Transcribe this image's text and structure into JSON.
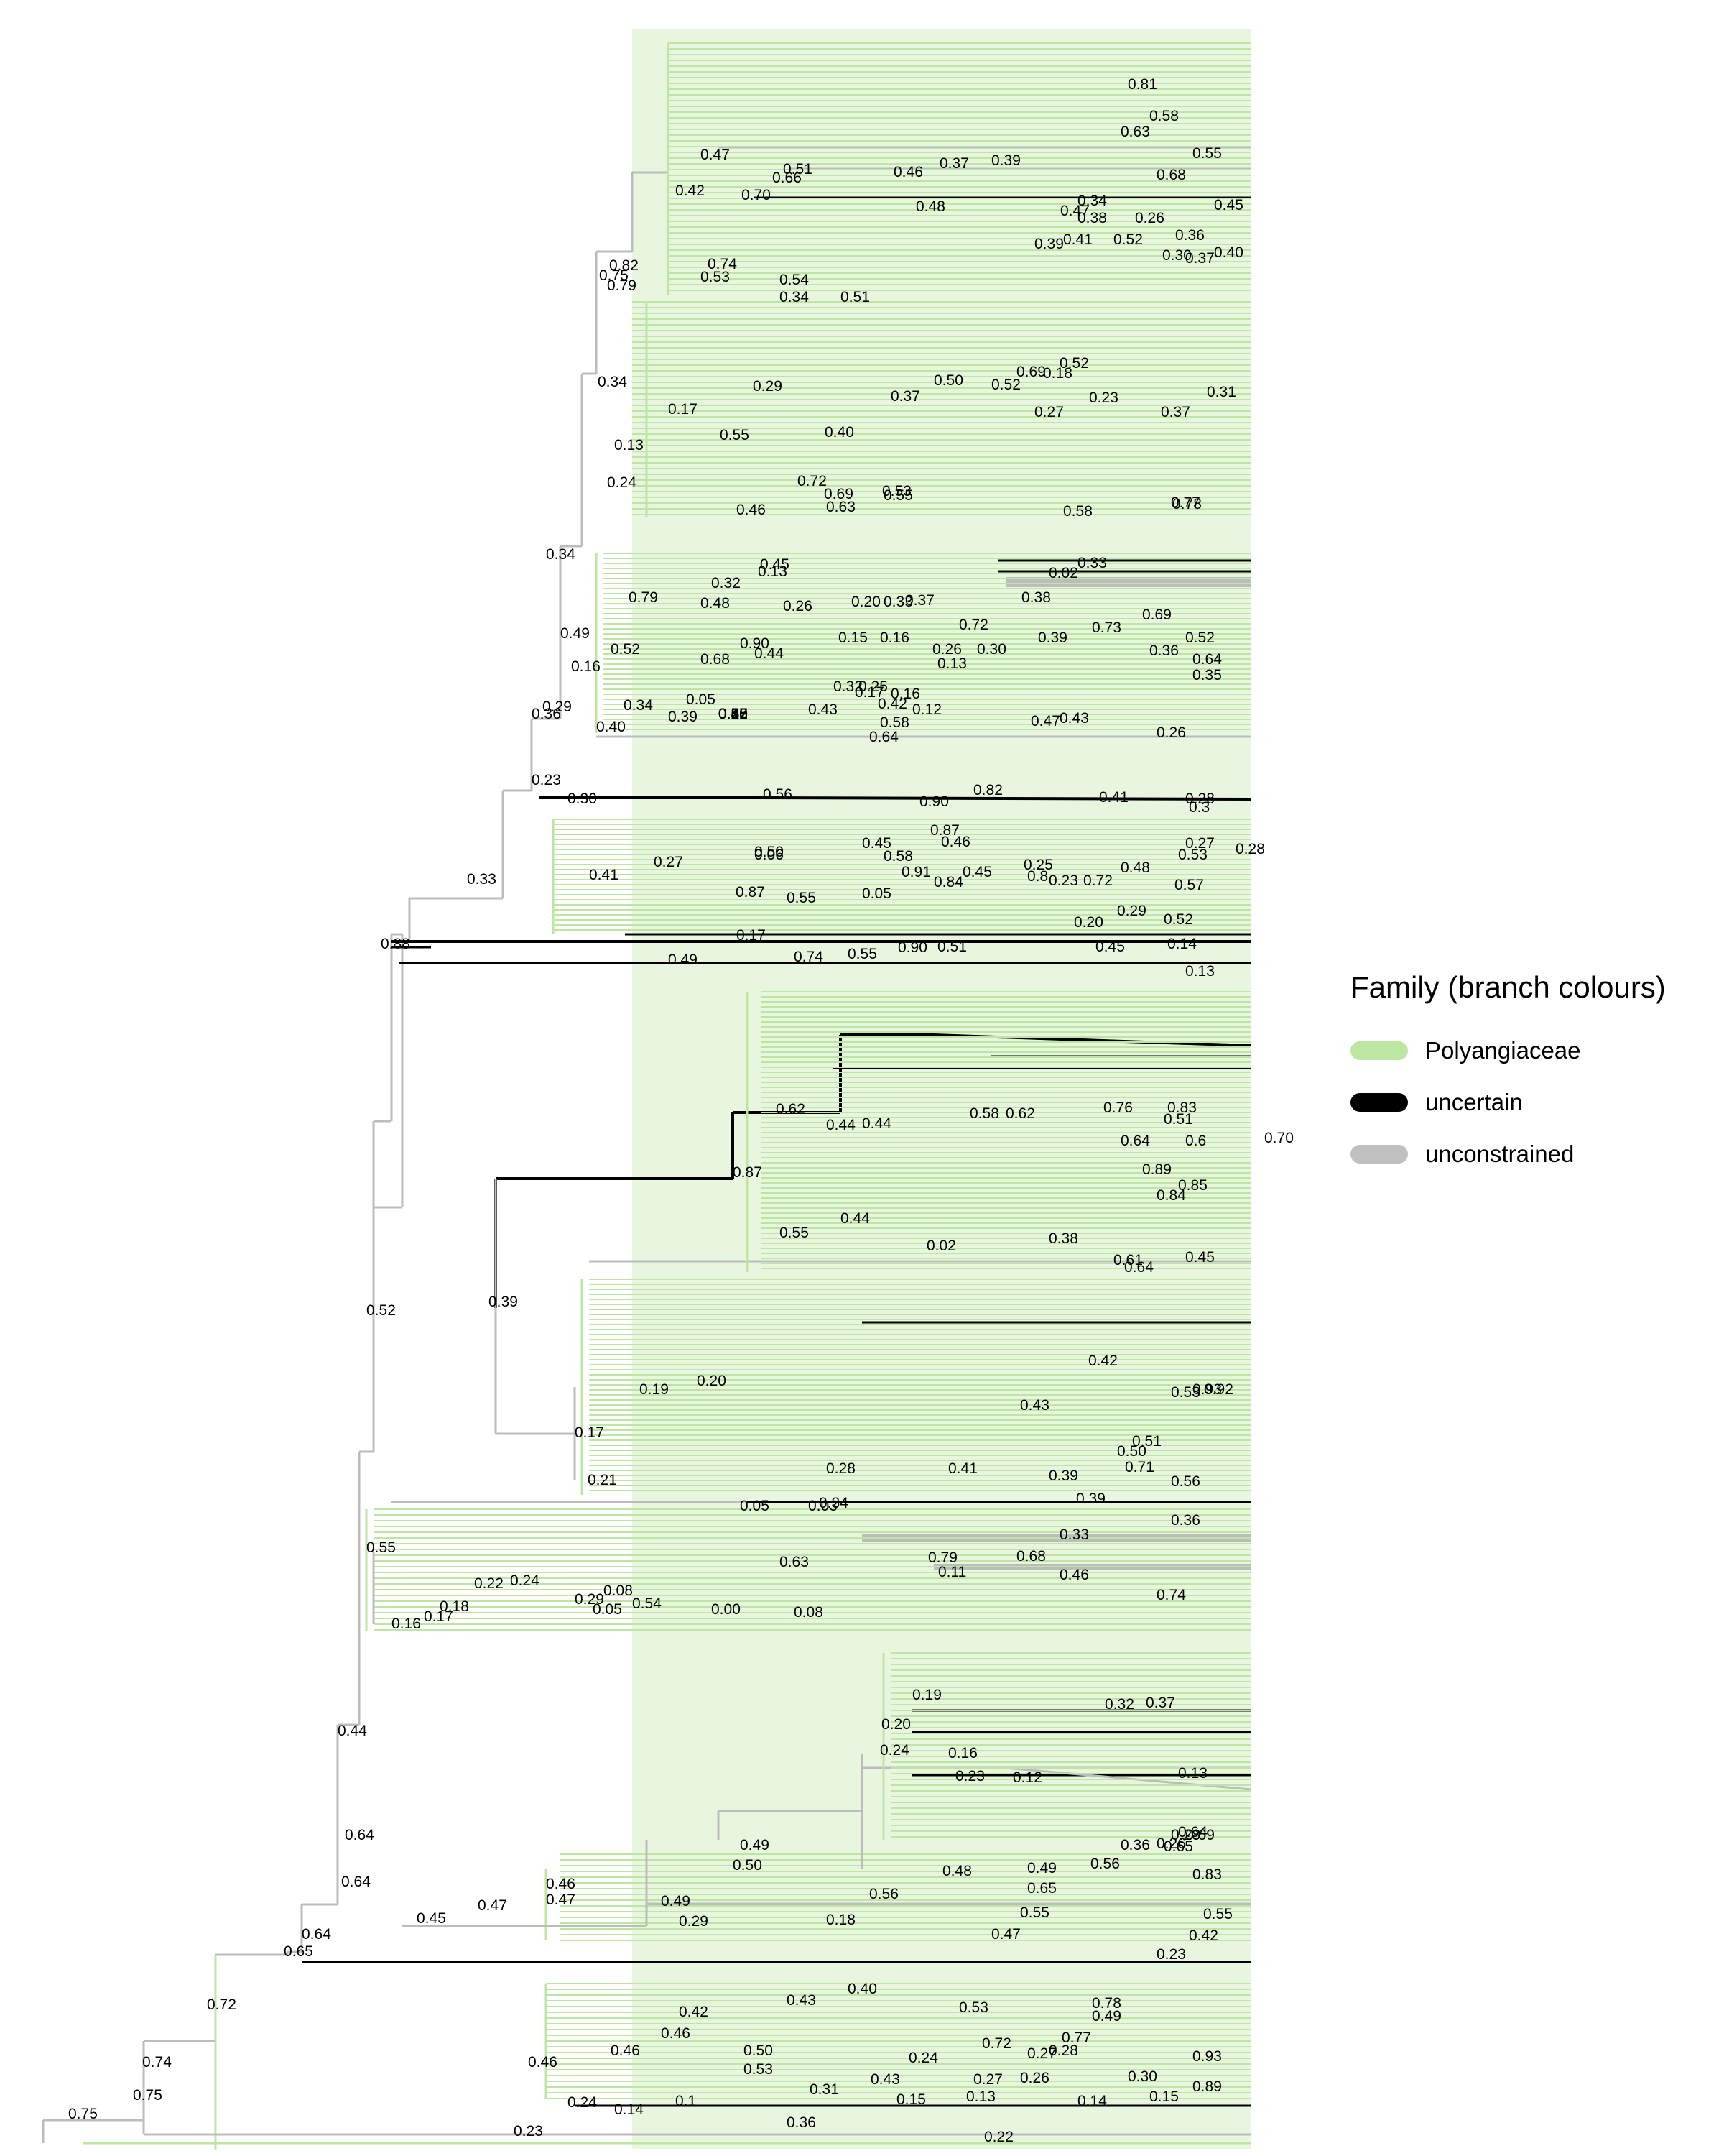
{
  "legend": {
    "title": "Family (branch colours)",
    "items": [
      {
        "label": "Polyangiaceae",
        "color": "#bde6a3"
      },
      {
        "label": "uncertain",
        "color": "#000000"
      },
      {
        "label": "unconstrained",
        "color": "#c0c0c0"
      }
    ]
  },
  "colors": {
    "polyangiaceae": "#bde6a3",
    "uncertain": "#000000",
    "unconstrained": "#bcbcbc"
  },
  "node_labels": [
    "0.75",
    "0.74",
    "0.75",
    "0.72",
    "0.23",
    "0.36",
    "0.22",
    "0.24",
    "0.14",
    "0.1",
    "0.31",
    "0.43",
    "0.15",
    "0.13",
    "0.27",
    "0.26",
    "0.14",
    "0.30",
    "0.15",
    "0.89",
    "0.46",
    "0.46",
    "0.42",
    "0.46",
    "0.50",
    "0.53",
    "0.24",
    "0.43",
    "0.40",
    "0.53",
    "0.72",
    "0.27",
    "0.28",
    "0.77",
    "0.78",
    "0.49",
    "0.93",
    "0.65",
    "0.64",
    "0.64",
    "0.64",
    "0.44",
    "0.45",
    "0.47",
    "0.47",
    "0.46",
    "0.49",
    "0.50",
    "0.49",
    "0.29",
    "0.56",
    "0.18",
    "0.65",
    "0.55",
    "0.47",
    "0.55",
    "0.42",
    "0.23",
    "0.83",
    "0.24",
    "0.20",
    "0.19",
    "0.23",
    "0.12",
    "0.16",
    "0.32",
    "0.37",
    "0.48",
    "0.49",
    "0.56",
    "0.36",
    "0.65",
    "0.26",
    "0.28",
    "0.64",
    "0.69",
    "0.13",
    "0.55",
    "0.16",
    "0.17",
    "0.18",
    "0.22",
    "0.24",
    "0.29",
    "0.05",
    "0.54",
    "0.00",
    "0.08",
    "0.74",
    "0.08",
    "0.63",
    "0.79",
    "0.11",
    "0.68",
    "0.46",
    "0.33",
    "0.36",
    "0.39",
    "0.34",
    "0.03",
    "0.05",
    "0.52",
    "0.39",
    "0.17",
    "0.21",
    "0.19",
    "0.20",
    "0.28",
    "0.41",
    "0.39",
    "0.71",
    "0.50",
    "0.56",
    "0.51",
    "0.43",
    "0.42",
    "0.53",
    "0.93",
    "0.64",
    "0.92",
    "0.87",
    "0.62",
    "0.55",
    "0.44",
    "0.02",
    "0.38",
    "0.61",
    "0.45",
    "0.44",
    "0.44",
    "0.58",
    "0.62",
    "0.76",
    "0.83",
    "0.51",
    "0.6",
    "0.70",
    "0.64",
    "0.89",
    "0.85",
    "0.84",
    "0.88",
    "0.49",
    "0.74",
    "0.55",
    "0.90",
    "0.51",
    "0.45",
    "0.14",
    "0.13",
    "0.17",
    "0.20",
    "0.29",
    "0.52",
    "0.55",
    "0.87",
    "0.05",
    "0.84",
    "0.8",
    "0.72",
    "0.57",
    "0.33",
    "0.41",
    "0.27",
    "0.06",
    "0.58",
    "0.91",
    "0.45",
    "0.25",
    "0.23",
    "0.48",
    "0.87",
    "0.46",
    "0.50",
    "0.45",
    "0.53",
    "0.27",
    "0.28",
    "0.23",
    "0.30",
    "0.56",
    "0.82",
    "0.90",
    "0.41",
    "0.28",
    "0.3",
    "0.36",
    "0.40",
    "0.64",
    "0.58",
    "0.47",
    "0.43",
    "0.26",
    "0.29",
    "0.34",
    "0.39",
    "0.05",
    "0.43",
    "0.42",
    "0.16",
    "0.32",
    "0.17",
    "0.25",
    "0.12",
    "0.13",
    "0.35",
    "0.49",
    "0.16",
    "0.52",
    "0.68",
    "0.90",
    "0.44",
    "0.15",
    "0.16",
    "0.26",
    "0.30",
    "0.39",
    "0.36",
    "0.52",
    "0.64",
    "0.69",
    "0.72",
    "0.73",
    "0.34",
    "0.79",
    "0.48",
    "0.32",
    "0.13",
    "0.45",
    "0.26",
    "0.20",
    "0.33",
    "0.37",
    "0.38",
    "0.02",
    "0.33",
    "0.34",
    "0.13",
    "0.24",
    "0.17",
    "0.29",
    "0.55",
    "0.40",
    "0.37",
    "0.50",
    "0.52",
    "0.69",
    "0.18",
    "0.52",
    "0.27",
    "0.23",
    "0.37",
    "0.31",
    "0.72",
    "0.69",
    "0.55",
    "0.53",
    "0.58",
    "0.46",
    "0.63",
    "0.77",
    "0.78",
    "0.82",
    "0.79",
    "0.75",
    "0.74",
    "0.53",
    "0.54",
    "0.34",
    "0.51",
    "0.38",
    "0.26",
    "0.41",
    "0.52",
    "0.30",
    "0.36",
    "0.39",
    "0.40",
    "0.37",
    "0.42",
    "0.47",
    "0.70",
    "0.66",
    "0.51",
    "0.46",
    "0.48",
    "0.37",
    "0.39",
    "0.47",
    "0.34",
    "0.45",
    "0.55",
    "0.68",
    "0.63",
    "0.81",
    "0.58",
    "0.57",
    "0.38",
    "0.42",
    "0.20",
    "0.13",
    "0.8",
    "0.60",
    "0.52",
    "0.25",
    "0.15"
  ]
}
